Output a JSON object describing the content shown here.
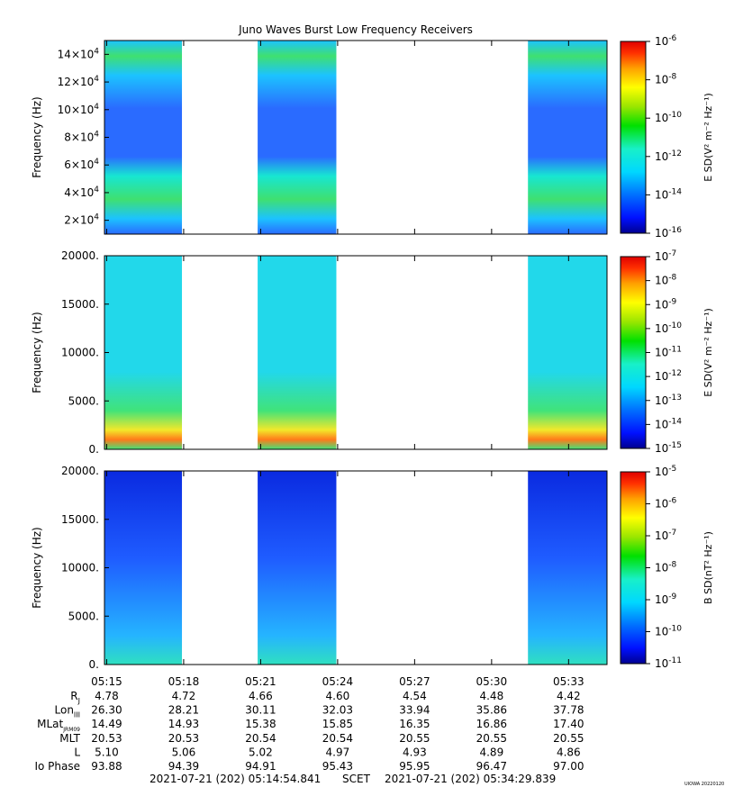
{
  "title": "Juno Waves Burst Low Frequency Receivers",
  "footer": {
    "start": "2021-07-21 (202) 05:14:54.841",
    "scet": "SCET",
    "end": "2021-07-21 (202) 05:34:29.839",
    "stamp": "UIOWA 20220120"
  },
  "chart_data": [
    {
      "type": "heatmap",
      "title": "Juno Waves Burst Low Frequency Receivers",
      "ylabel": "Frequency (Hz)",
      "colorbar_label": "E SD(V² m⁻² Hz⁻¹)",
      "colorbar_scale": "log",
      "colorbar_ticks": [
        {
          "base": "10",
          "exp": "-6"
        },
        {
          "base": "10",
          "exp": "-8"
        },
        {
          "base": "10",
          "exp": "-10"
        },
        {
          "base": "10",
          "exp": "-12"
        },
        {
          "base": "10",
          "exp": "-14"
        },
        {
          "base": "10",
          "exp": "-16"
        }
      ],
      "y_ticks": [
        {
          "mant": "2×10",
          "exp": "4",
          "v": 20000
        },
        {
          "mant": "4×10",
          "exp": "4",
          "v": 40000
        },
        {
          "mant": "6×10",
          "exp": "4",
          "v": 60000
        },
        {
          "mant": "8×10",
          "exp": "4",
          "v": 80000
        },
        {
          "mant": "10×10",
          "exp": "4",
          "v": 100000
        },
        {
          "mant": "12×10",
          "exp": "4",
          "v": 120000
        },
        {
          "mant": "14×10",
          "exp": "4",
          "v": 140000
        }
      ],
      "ylim": [
        10000,
        150000
      ],
      "data_intervals": [
        [
          "05:14:54",
          "05:17:56"
        ],
        [
          "05:20:53",
          "05:23:57"
        ],
        [
          "05:31:25",
          "05:34:29"
        ]
      ],
      "colors": [
        "#2a6bff",
        "#1cc3ff",
        "#17e6d2",
        "#3fe070"
      ]
    },
    {
      "type": "heatmap",
      "ylabel": "Frequency (Hz)",
      "colorbar_label": "E SD(V² m⁻² Hz⁻¹)",
      "colorbar_scale": "log",
      "colorbar_ticks": [
        {
          "base": "10",
          "exp": "-7"
        },
        {
          "base": "10",
          "exp": "-8"
        },
        {
          "base": "10",
          "exp": "-9"
        },
        {
          "base": "10",
          "exp": "-10"
        },
        {
          "base": "10",
          "exp": "-11"
        },
        {
          "base": "10",
          "exp": "-12"
        },
        {
          "base": "10",
          "exp": "-13"
        },
        {
          "base": "10",
          "exp": "-14"
        },
        {
          "base": "10",
          "exp": "-15"
        }
      ],
      "y_ticks": [
        {
          "label": "0.",
          "v": 0
        },
        {
          "label": "5000.",
          "v": 5000
        },
        {
          "label": "10000.",
          "v": 10000
        },
        {
          "label": "15000.",
          "v": 15000
        },
        {
          "label": "20000.",
          "v": 20000
        }
      ],
      "ylim": [
        0,
        20000
      ],
      "data_intervals": [
        [
          "05:14:54",
          "05:17:56"
        ],
        [
          "05:20:53",
          "05:23:57"
        ],
        [
          "05:31:25",
          "05:34:29"
        ]
      ],
      "colors": [
        "#22d8ea",
        "#40e37a",
        "#f2e82a",
        "#ff7a1a"
      ]
    },
    {
      "type": "heatmap",
      "ylabel": "Frequency (Hz)",
      "colorbar_label": "B SD(nT² Hz⁻¹)",
      "colorbar_scale": "log",
      "colorbar_ticks": [
        {
          "base": "10",
          "exp": "-5"
        },
        {
          "base": "10",
          "exp": "-6"
        },
        {
          "base": "10",
          "exp": "-7"
        },
        {
          "base": "10",
          "exp": "-8"
        },
        {
          "base": "10",
          "exp": "-9"
        },
        {
          "base": "10",
          "exp": "-10"
        },
        {
          "base": "10",
          "exp": "-11"
        }
      ],
      "y_ticks": [
        {
          "label": "0.",
          "v": 0
        },
        {
          "label": "5000.",
          "v": 5000
        },
        {
          "label": "10000.",
          "v": 10000
        },
        {
          "label": "15000.",
          "v": 15000
        },
        {
          "label": "20000.",
          "v": 20000
        }
      ],
      "ylim": [
        0,
        20000
      ],
      "data_intervals": [
        [
          "05:14:54",
          "05:17:56"
        ],
        [
          "05:20:53",
          "05:23:57"
        ],
        [
          "05:31:25",
          "05:34:29"
        ]
      ],
      "colors": [
        "#0a2ae0",
        "#1f5cff",
        "#25b4ff",
        "#2fe0c0"
      ]
    }
  ],
  "x_axis": {
    "times": [
      "05:15",
      "05:18",
      "05:21",
      "05:24",
      "05:27",
      "05:30",
      "05:33"
    ],
    "rows": [
      {
        "label": "R",
        "sub": "J",
        "values": [
          "4.78",
          "4.72",
          "4.66",
          "4.60",
          "4.54",
          "4.48",
          "4.42"
        ]
      },
      {
        "label": "Lon",
        "sub": "III",
        "values": [
          "26.30",
          "28.21",
          "30.11",
          "32.03",
          "33.94",
          "35.86",
          "37.78"
        ]
      },
      {
        "label": "MLat",
        "sub": "JRM09",
        "values": [
          "14.49",
          "14.93",
          "15.38",
          "15.85",
          "16.35",
          "16.86",
          "17.40"
        ]
      },
      {
        "label": "MLT",
        "sub": "",
        "values": [
          "20.53",
          "20.53",
          "20.54",
          "20.54",
          "20.55",
          "20.55",
          "20.55"
        ]
      },
      {
        "label": "L",
        "sub": "",
        "values": [
          "5.10",
          "5.06",
          "5.02",
          "4.97",
          "4.93",
          "4.89",
          "4.86"
        ]
      },
      {
        "label": "Io Phase",
        "sub": "",
        "values": [
          "93.88",
          "94.39",
          "94.91",
          "95.43",
          "95.95",
          "96.47",
          "97.00"
        ]
      }
    ]
  }
}
